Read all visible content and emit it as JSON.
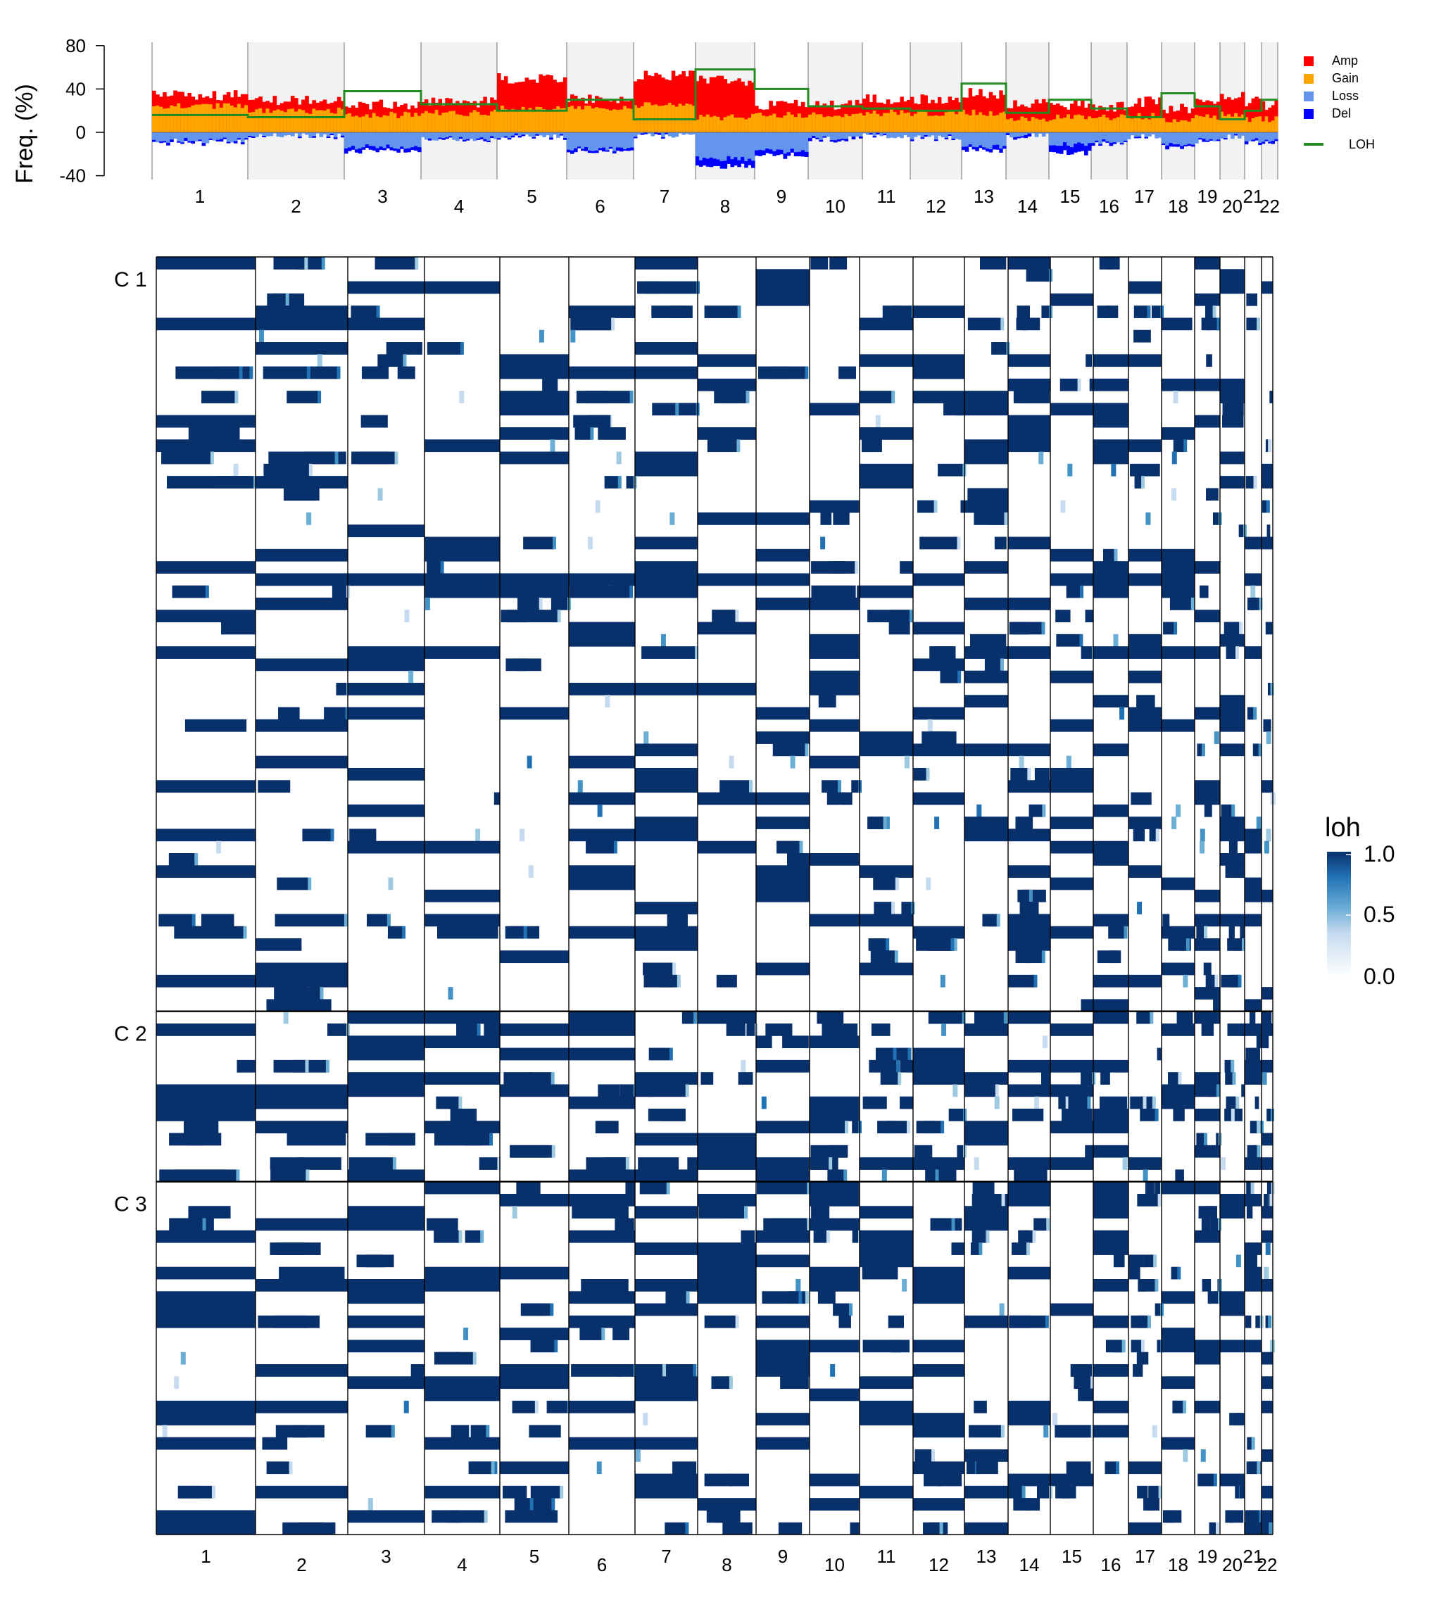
{
  "chart_data": [
    {
      "type": "area",
      "ylabel": "Freq. (%)",
      "ylim": [
        -40,
        80
      ],
      "yticks": [
        "80",
        "40",
        "0",
        "-40"
      ],
      "grid": false,
      "legend_position": "right",
      "chromosomes": [
        "1",
        "2",
        "3",
        "4",
        "5",
        "6",
        "7",
        "8",
        "9",
        "10",
        "11",
        "12",
        "13",
        "14",
        "15",
        "16",
        "17",
        "18",
        "19",
        "20",
        "21",
        "22"
      ],
      "legend": [
        {
          "label": "Amp",
          "color": "#ff0000"
        },
        {
          "label": "Gain",
          "color": "#ffa500"
        },
        {
          "label": "Loss",
          "color": "#6495ed"
        },
        {
          "label": "Del",
          "color": "#0000ff"
        },
        {
          "label": "LOH",
          "color": "#228b22"
        }
      ],
      "series": [
        {
          "name": "Amp",
          "values": [
            34,
            30,
            26,
            28,
            50,
            30,
            52,
            48,
            25,
            25,
            30,
            30,
            36,
            26,
            25,
            24,
            28,
            22,
            30,
            35,
            28,
            25
          ]
        },
        {
          "name": "Gain",
          "values": [
            24,
            20,
            16,
            18,
            22,
            22,
            25,
            14,
            16,
            16,
            18,
            18,
            18,
            12,
            14,
            14,
            15,
            12,
            14,
            16,
            12,
            12
          ]
        },
        {
          "name": "Loss",
          "values": [
            -8,
            -3,
            -14,
            -6,
            -4,
            -16,
            -3,
            -25,
            -18,
            -6,
            -3,
            -5,
            -14,
            -3,
            -12,
            -9,
            -4,
            -12,
            -8,
            -4,
            -8,
            -8
          ]
        },
        {
          "name": "Del",
          "values": [
            -2,
            -1,
            -4,
            -1,
            -1,
            -3,
            -1,
            -8,
            -5,
            -2,
            -1,
            -1,
            -4,
            -2,
            -8,
            -2,
            -1,
            -3,
            -2,
            -1,
            -2,
            -2
          ]
        },
        {
          "name": "LOH",
          "values": [
            16,
            14,
            38,
            26,
            20,
            30,
            12,
            58,
            40,
            24,
            22,
            20,
            45,
            18,
            30,
            22,
            14,
            36,
            24,
            12,
            20,
            30
          ]
        }
      ]
    },
    {
      "type": "heatmap",
      "clusters": [
        "C 1",
        "C 2",
        "C 3"
      ],
      "cluster_rows": [
        62,
        14,
        29
      ],
      "chromosomes": [
        "1",
        "2",
        "3",
        "4",
        "5",
        "6",
        "7",
        "8",
        "9",
        "10",
        "11",
        "12",
        "13",
        "14",
        "15",
        "16",
        "17",
        "18",
        "19",
        "20",
        "21",
        "22"
      ],
      "colorbar": {
        "title": "loh",
        "ticks": [
          "1.0",
          "0.5",
          "0.0"
        ],
        "range": [
          0,
          1
        ],
        "low_color": "#ffffff",
        "high_color": "#08306b"
      }
    }
  ]
}
